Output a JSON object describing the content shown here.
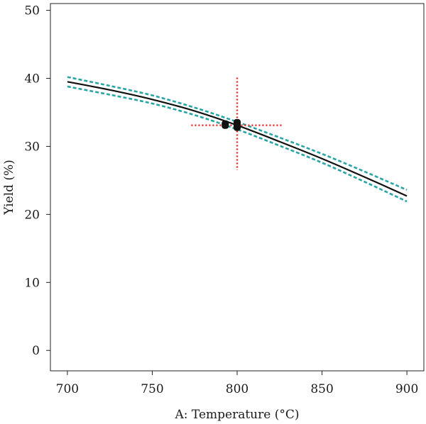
{
  "chart_data": {
    "type": "line",
    "title": "",
    "xlabel": "A: Temperature (°C)",
    "ylabel": "Yield (%)",
    "xlim": [
      690,
      910
    ],
    "ylim": [
      -3,
      51
    ],
    "xticks": [
      700,
      750,
      800,
      850,
      900
    ],
    "yticks": [
      0,
      10,
      20,
      30,
      40,
      50
    ],
    "grid": false,
    "legend": "none",
    "series": [
      {
        "role": "fit",
        "color": "#111111",
        "x": [
          700,
          725,
          750,
          775,
          800,
          825,
          850,
          875,
          900
        ],
        "y": [
          39.5,
          38.3,
          36.9,
          35.2,
          33.1,
          30.7,
          28.2,
          25.5,
          22.7
        ]
      },
      {
        "role": "upper-confidence",
        "color": "#2aa5a5",
        "x": [
          700,
          725,
          750,
          775,
          800,
          825,
          850,
          875,
          900
        ],
        "y": [
          40.2,
          38.9,
          37.5,
          35.7,
          33.6,
          31.3,
          28.9,
          26.3,
          23.6
        ]
      },
      {
        "role": "lower-confidence",
        "color": "#2aa5a5",
        "x": [
          700,
          725,
          750,
          775,
          800,
          825,
          850,
          875,
          900
        ],
        "y": [
          38.8,
          37.6,
          36.3,
          34.6,
          32.5,
          30.1,
          27.6,
          24.8,
          21.9
        ]
      }
    ],
    "points": [
      {
        "x": 793,
        "y": 33.2,
        "color": "#111111"
      },
      {
        "x": 800,
        "y": 33.4,
        "color": "#111111"
      },
      {
        "x": 800,
        "y": 32.9,
        "color": "#111111"
      }
    ],
    "crosshair": {
      "x": 800,
      "y": 33.1,
      "x_range": [
        773,
        827
      ],
      "y_range": [
        26.5,
        40.1
      ],
      "color": "#ee2222"
    }
  }
}
